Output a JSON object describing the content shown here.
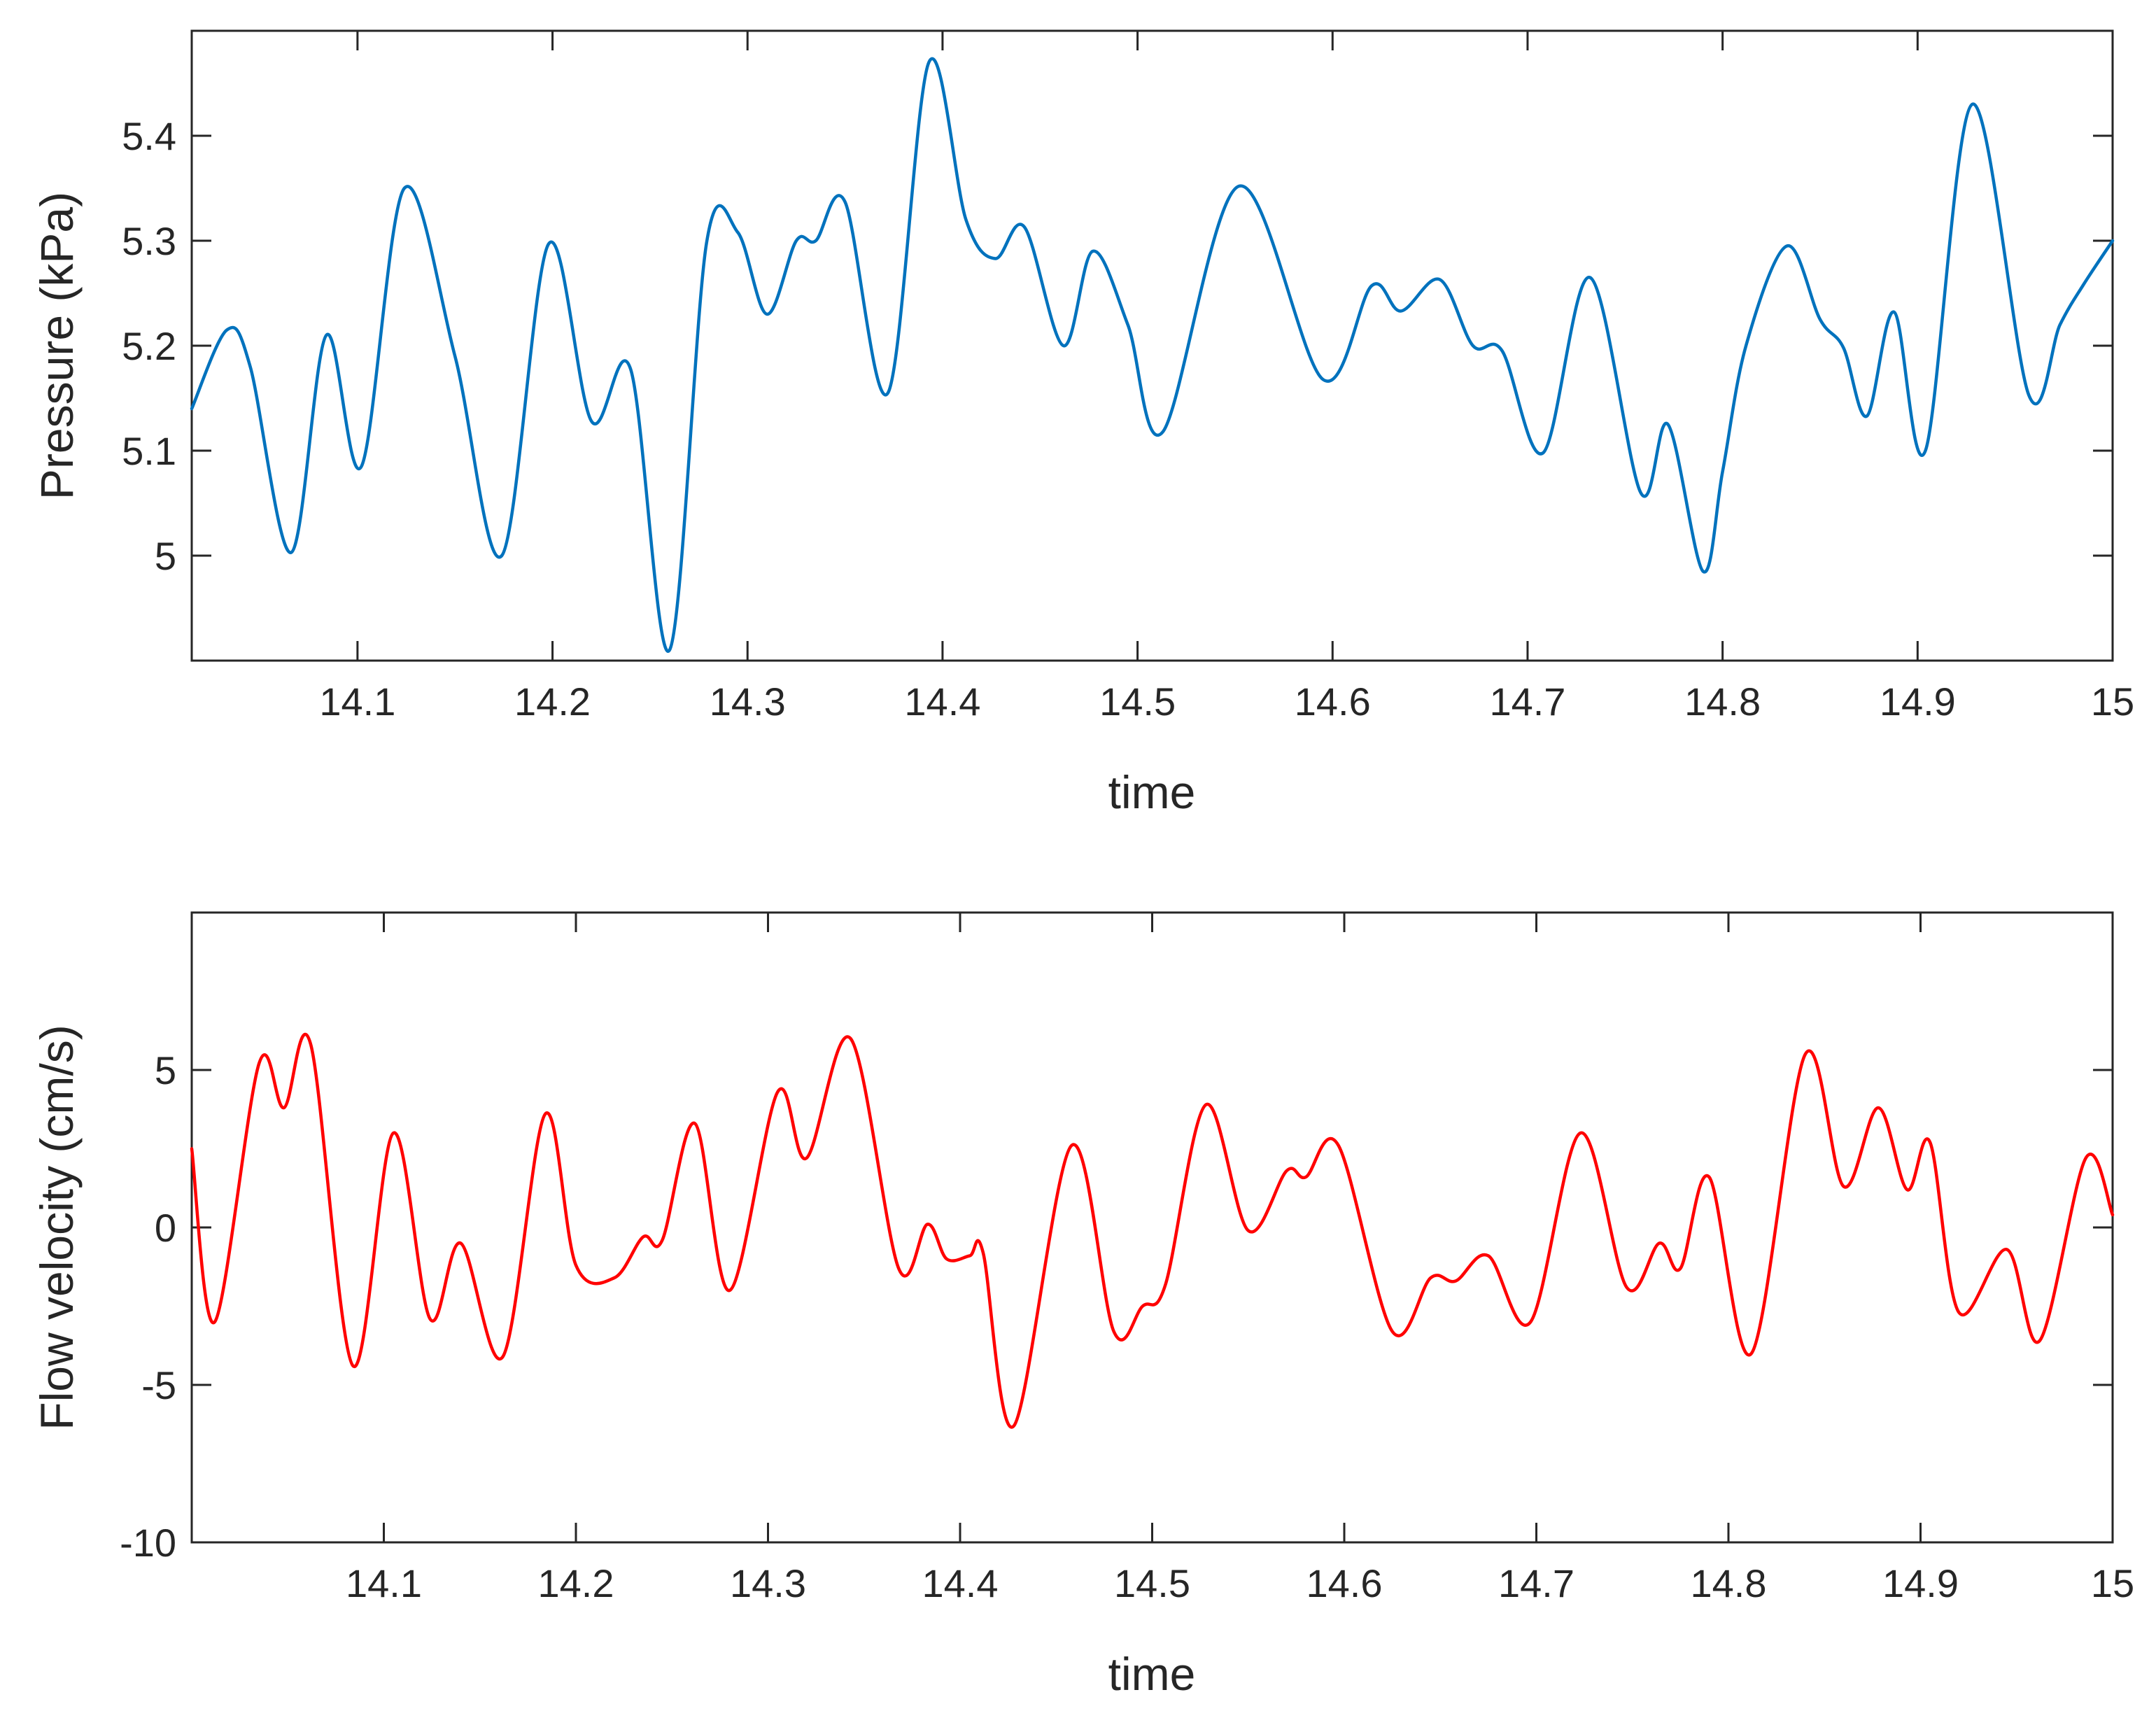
{
  "chart_data": [
    {
      "type": "line",
      "title": "",
      "xlabel": "time",
      "ylabel": "Pressure (kPa)",
      "xlim": [
        14.015,
        15.0
      ],
      "ylim": [
        4.9,
        5.5
      ],
      "xticks": [
        14.1,
        14.2,
        14.3,
        14.4,
        14.5,
        14.6,
        14.7,
        14.8,
        14.9,
        15
      ],
      "xtick_labels": [
        "14.1",
        "14.2",
        "14.3",
        "14.4",
        "14.5",
        "14.6",
        "14.7",
        "14.8",
        "14.9",
        "15"
      ],
      "yticks": [
        5,
        5.1,
        5.2,
        5.3,
        5.4
      ],
      "ytick_labels": [
        "5",
        "5.1",
        "5.2",
        "5.3",
        "5.4"
      ],
      "grid": false,
      "color": "#0072BD",
      "series": [
        {
          "x": [
            14.015,
            14.033,
            14.045,
            14.066,
            14.084,
            14.102,
            14.124,
            14.15,
            14.174,
            14.198,
            14.22,
            14.24,
            14.26,
            14.279,
            14.295,
            14.31,
            14.325,
            14.335,
            14.35,
            14.372,
            14.393,
            14.412,
            14.427,
            14.442,
            14.462,
            14.477,
            14.495,
            14.513,
            14.552,
            14.595,
            14.62,
            14.635,
            14.655,
            14.672,
            14.687,
            14.708,
            14.732,
            14.758,
            14.772,
            14.79,
            14.8,
            14.812,
            14.833,
            14.85,
            14.862,
            14.874,
            14.888,
            14.904,
            14.928,
            14.957,
            14.973,
            14.985,
            15.0
          ],
          "y": [
            5.14,
            5.215,
            5.18,
            5.003,
            5.21,
            5.085,
            5.35,
            5.19,
            5.0,
            5.297,
            5.128,
            5.178,
            4.91,
            5.298,
            5.308,
            5.23,
            5.3,
            5.3,
            5.337,
            5.155,
            5.47,
            5.32,
            5.283,
            5.313,
            5.2,
            5.29,
            5.22,
            5.118,
            5.352,
            5.168,
            5.257,
            5.233,
            5.263,
            5.2,
            5.195,
            5.098,
            5.265,
            5.06,
            5.125,
            4.985,
            5.08,
            5.2,
            5.295,
            5.225,
            5.198,
            5.133,
            5.232,
            5.1,
            5.43,
            5.153,
            5.22,
            5.258,
            5.3
          ]
        }
      ]
    },
    {
      "type": "line",
      "title": "",
      "xlabel": "time",
      "ylabel": "Flow velocity (cm/s)",
      "xlim": [
        14.0,
        15.0
      ],
      "ylim": [
        -10,
        10
      ],
      "xticks": [
        14.1,
        14.2,
        14.3,
        14.4,
        14.5,
        14.6,
        14.7,
        14.8,
        14.9,
        15
      ],
      "xtick_labels": [
        "14.1",
        "14.2",
        "14.3",
        "14.4",
        "14.5",
        "14.6",
        "14.7",
        "14.8",
        "14.9",
        "15"
      ],
      "yticks": [
        -10,
        -5,
        0,
        5
      ],
      "ytick_labels": [
        "-10",
        "-5",
        "0",
        "5"
      ],
      "grid": false,
      "color": "#FF0000",
      "series": [
        {
          "x": [
            14.0,
            14.012,
            14.035,
            14.048,
            14.062,
            14.084,
            14.105,
            14.124,
            14.14,
            14.162,
            14.184,
            14.2,
            14.22,
            14.235,
            14.245,
            14.262,
            14.28,
            14.305,
            14.32,
            14.343,
            14.368,
            14.383,
            14.393,
            14.405,
            14.412,
            14.428,
            14.458,
            14.48,
            14.495,
            14.507,
            14.528,
            14.55,
            14.57,
            14.58,
            14.597,
            14.625,
            14.645,
            14.658,
            14.675,
            14.697,
            14.723,
            14.747,
            14.764,
            14.775,
            14.79,
            14.812,
            14.84,
            14.86,
            14.878,
            14.893,
            14.905,
            14.92,
            14.945,
            14.962,
            14.986,
            15.0
          ],
          "y": [
            2.5,
            -3.0,
            5.2,
            3.8,
            5.8,
            -4.4,
            3.0,
            -2.9,
            -0.5,
            -4.1,
            3.6,
            -1.2,
            -1.6,
            -0.3,
            -0.4,
            3.3,
            -2.0,
            4.3,
            2.2,
            6.0,
            -1.3,
            0.1,
            -1.0,
            -0.9,
            -0.8,
            -6.3,
            2.6,
            -3.3,
            -2.5,
            -1.8,
            3.9,
            -0.1,
            1.8,
            1.6,
            2.6,
            -3.3,
            -1.6,
            -1.7,
            -0.9,
            -3.0,
            3.0,
            -1.9,
            -0.5,
            -1.3,
            1.6,
            -4.0,
            5.5,
            1.3,
            3.8,
            1.2,
            2.7,
            -2.7,
            -0.7,
            -3.6,
            2.2,
            0.4
          ]
        }
      ]
    }
  ]
}
